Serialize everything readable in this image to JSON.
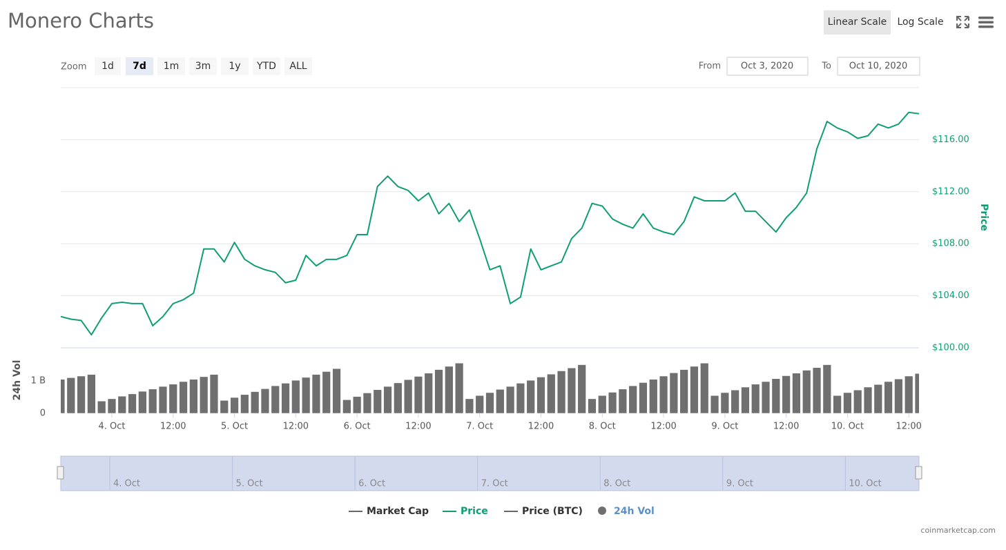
{
  "title": "Monero Charts",
  "scale_buttons": [
    {
      "label": "Linear Scale",
      "selected": true
    },
    {
      "label": "Log Scale"
    }
  ],
  "zoom_label": "Zoom",
  "zoom_buttons": [
    {
      "label": "1d"
    },
    {
      "label": "7d",
      "selected": true
    },
    {
      "label": "1m"
    },
    {
      "label": "3m"
    },
    {
      "label": "1y"
    },
    {
      "label": "YTD"
    },
    {
      "label": "ALL"
    }
  ],
  "from_label": "From",
  "from": "Oct 3, 2020",
  "to_label": "To",
  "to": "Oct 10, 2020",
  "credit": "coinmarketcap.com",
  "chart_data": {
    "type": "line",
    "y_label": "Price",
    "y2_label": "24h Vol",
    "xlim": [
      "2020-10-03T14:00",
      "2020-10-10T14:00"
    ],
    "xticks": [
      {
        "value": "2020-10-04T00:00",
        "label": "4. Oct"
      },
      {
        "value": "2020-10-04T12:00",
        "label": "12:00"
      },
      {
        "value": "2020-10-05T00:00",
        "label": "5. Oct"
      },
      {
        "value": "2020-10-05T12:00",
        "label": "12:00"
      },
      {
        "value": "2020-10-06T00:00",
        "label": "6. Oct"
      },
      {
        "value": "2020-10-06T12:00",
        "label": "12:00"
      },
      {
        "value": "2020-10-07T00:00",
        "label": "7. Oct"
      },
      {
        "value": "2020-10-07T12:00",
        "label": "12:00"
      },
      {
        "value": "2020-10-08T00:00",
        "label": "8. Oct"
      },
      {
        "value": "2020-10-08T12:00",
        "label": "12:00"
      },
      {
        "value": "2020-10-09T00:00",
        "label": "9. Oct"
      },
      {
        "value": "2020-10-09T12:00",
        "label": "12:00"
      },
      {
        "value": "2020-10-10T00:00",
        "label": "10. Oct"
      },
      {
        "value": "2020-10-10T12:00",
        "label": "12:00"
      }
    ],
    "ylim": [
      100,
      120
    ],
    "yticks": [
      {
        "value": 100,
        "label": "$100.00"
      },
      {
        "value": 104,
        "label": "$104.00"
      },
      {
        "value": 108,
        "label": "$108.00"
      },
      {
        "value": 112,
        "label": "$112.00"
      },
      {
        "value": 116,
        "label": "$116.00"
      }
    ],
    "y2lim": [
      0,
      2
    ],
    "y2ticks": [
      0,
      {
        "value": 1,
        "label": "1 B"
      }
    ],
    "grid": true,
    "x": [
      "2020-10-03T14:00",
      "2020-10-03T16:00",
      "2020-10-03T18:00",
      "2020-10-03T20:00",
      "2020-10-03T22:00",
      "2020-10-04T00:00",
      "2020-10-04T02:00",
      "2020-10-04T04:00",
      "2020-10-04T06:00",
      "2020-10-04T08:00",
      "2020-10-04T10:00",
      "2020-10-04T12:00",
      "2020-10-04T14:00",
      "2020-10-04T16:00",
      "2020-10-04T18:00",
      "2020-10-04T20:00",
      "2020-10-04T22:00",
      "2020-10-05T00:00",
      "2020-10-05T02:00",
      "2020-10-05T04:00",
      "2020-10-05T06:00",
      "2020-10-05T08:00",
      "2020-10-05T10:00",
      "2020-10-05T12:00",
      "2020-10-05T14:00",
      "2020-10-05T16:00",
      "2020-10-05T18:00",
      "2020-10-05T20:00",
      "2020-10-05T22:00",
      "2020-10-06T00:00",
      "2020-10-06T02:00",
      "2020-10-06T04:00",
      "2020-10-06T06:00",
      "2020-10-06T08:00",
      "2020-10-06T10:00",
      "2020-10-06T12:00",
      "2020-10-06T14:00",
      "2020-10-06T16:00",
      "2020-10-06T18:00",
      "2020-10-06T20:00",
      "2020-10-06T22:00",
      "2020-10-07T00:00",
      "2020-10-07T02:00",
      "2020-10-07T04:00",
      "2020-10-07T06:00",
      "2020-10-07T08:00",
      "2020-10-07T10:00",
      "2020-10-07T12:00",
      "2020-10-07T14:00",
      "2020-10-07T16:00",
      "2020-10-07T18:00",
      "2020-10-07T20:00",
      "2020-10-07T22:00",
      "2020-10-08T00:00",
      "2020-10-08T02:00",
      "2020-10-08T04:00",
      "2020-10-08T06:00",
      "2020-10-08T08:00",
      "2020-10-08T10:00",
      "2020-10-08T12:00",
      "2020-10-08T14:00",
      "2020-10-08T16:00",
      "2020-10-08T18:00",
      "2020-10-08T20:00",
      "2020-10-08T22:00",
      "2020-10-09T00:00",
      "2020-10-09T02:00",
      "2020-10-09T04:00",
      "2020-10-09T06:00",
      "2020-10-09T08:00",
      "2020-10-09T10:00",
      "2020-10-09T12:00",
      "2020-10-09T14:00",
      "2020-10-09T16:00",
      "2020-10-09T18:00",
      "2020-10-09T20:00",
      "2020-10-09T22:00",
      "2020-10-10T00:00",
      "2020-10-10T02:00",
      "2020-10-10T04:00",
      "2020-10-10T06:00",
      "2020-10-10T08:00",
      "2020-10-10T10:00",
      "2020-10-10T12:00",
      "2020-10-10T14:00"
    ],
    "series": [
      {
        "name": "Market Cap",
        "color": "#666666",
        "visible": false
      },
      {
        "name": "Price",
        "color": "#0f9d74",
        "type": "line",
        "visible": true,
        "values": [
          102.4,
          102.2,
          102.1,
          101.0,
          102.3,
          103.4,
          103.5,
          103.4,
          103.4,
          101.7,
          102.4,
          103.4,
          103.7,
          104.2,
          107.6,
          107.6,
          106.6,
          108.1,
          106.8,
          106.3,
          106.0,
          105.8,
          105.0,
          105.2,
          107.1,
          106.3,
          106.8,
          106.8,
          107.1,
          108.7,
          108.7,
          112.4,
          113.2,
          112.4,
          112.1,
          111.3,
          111.9,
          110.3,
          111.1,
          109.7,
          110.6,
          108.4,
          106.0,
          106.3,
          103.4,
          103.9,
          107.6,
          106.0,
          106.3,
          106.6,
          108.4,
          109.2,
          111.1,
          110.9,
          109.9,
          109.5,
          109.2,
          110.3,
          109.2,
          108.9,
          108.7,
          109.7,
          111.6,
          111.3,
          111.3,
          111.3,
          111.9,
          110.5,
          110.5,
          109.7,
          108.9,
          110.0,
          110.8,
          111.9,
          115.3,
          117.4,
          116.9,
          116.6,
          116.1,
          116.3,
          117.2,
          116.9,
          117.2,
          118.1,
          118.0
        ]
      },
      {
        "name": "Price (BTC)",
        "color": "#666666",
        "visible": false
      },
      {
        "name": "24h Vol",
        "color": "#6f6f6f",
        "legend_color": "#5b8fc7",
        "type": "bar",
        "axis": "y2",
        "visible": true,
        "values": [
          1.05,
          1.1,
          1.15,
          1.2,
          0.38,
          0.45,
          0.53,
          0.6,
          0.68,
          0.75,
          0.83,
          0.9,
          0.98,
          1.05,
          1.13,
          1.2,
          0.4,
          0.49,
          0.58,
          0.67,
          0.76,
          0.85,
          0.93,
          1.02,
          1.11,
          1.2,
          1.29,
          1.38,
          0.42,
          0.52,
          0.63,
          0.73,
          0.83,
          0.94,
          1.04,
          1.14,
          1.24,
          1.35,
          1.45,
          1.55,
          0.45,
          0.55,
          0.64,
          0.74,
          0.83,
          0.93,
          1.02,
          1.12,
          1.21,
          1.31,
          1.4,
          1.5,
          0.45,
          0.55,
          0.65,
          0.75,
          0.85,
          0.95,
          1.05,
          1.15,
          1.25,
          1.35,
          1.45,
          1.55,
          0.55,
          0.64,
          0.72,
          0.81,
          0.9,
          0.98,
          1.07,
          1.16,
          1.24,
          1.33,
          1.41,
          1.5,
          0.55,
          0.64,
          0.72,
          0.81,
          0.89,
          0.98,
          1.06,
          1.15,
          1.23
        ]
      }
    ]
  }
}
